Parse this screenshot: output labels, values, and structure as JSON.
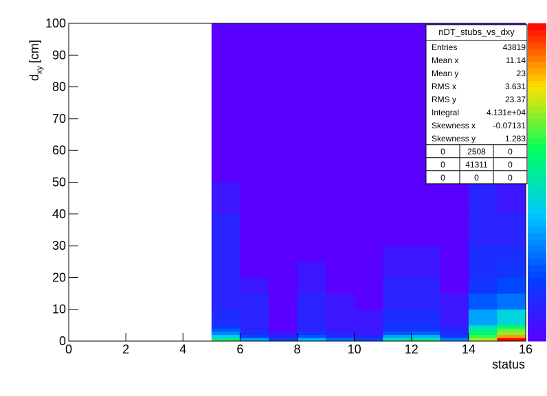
{
  "chart_data": {
    "type": "heatmap",
    "x_label": "status",
    "y_label": "d",
    "y_label_subscript": "xy",
    "y_label_unit": "[cm]",
    "xlim": [
      0,
      16
    ],
    "xticks": [
      0,
      2,
      4,
      6,
      8,
      10,
      12,
      14,
      16
    ],
    "ylim": [
      0,
      100
    ],
    "yticks": [
      0,
      10,
      20,
      30,
      40,
      50,
      60,
      70,
      80,
      90,
      100
    ],
    "x_bins": [
      5,
      6,
      7,
      8,
      9,
      10,
      11,
      12,
      13,
      14,
      15,
      16
    ],
    "y_bins": [
      0,
      1,
      2,
      3,
      4,
      5,
      10,
      15,
      20,
      25,
      30,
      40,
      50,
      60,
      70,
      80,
      90,
      100
    ],
    "zlim": [
      1,
      20000
    ],
    "z_log": true,
    "palette": [
      "#5a00ff",
      "#0040ff",
      "#00c8ff",
      "#00ff60",
      "#ffe000",
      "#ff0000"
    ],
    "values": [
      [
        300,
        60,
        20,
        10,
        6,
        4,
        3,
        3,
        3,
        3,
        3,
        2,
        1,
        1,
        1,
        1,
        1
      ],
      [
        30,
        8,
        4,
        3,
        3,
        3,
        3,
        2,
        1,
        1,
        1,
        1,
        1,
        1,
        1,
        1,
        1
      ],
      [
        8,
        3,
        2,
        1,
        1,
        1,
        1,
        1,
        1,
        1,
        1,
        1,
        1,
        1,
        1,
        1,
        1
      ],
      [
        40,
        10,
        5,
        3,
        3,
        3,
        3,
        2,
        2,
        1,
        1,
        1,
        1,
        1,
        1,
        1,
        1
      ],
      [
        15,
        4,
        3,
        2,
        2,
        2,
        2,
        1,
        1,
        1,
        1,
        1,
        1,
        1,
        1,
        1,
        1
      ],
      [
        8,
        3,
        2,
        2,
        2,
        2,
        1,
        1,
        1,
        1,
        1,
        1,
        1,
        1,
        1,
        1,
        1
      ],
      [
        150,
        30,
        10,
        5,
        5,
        4,
        3,
        3,
        2,
        2,
        1,
        1,
        1,
        1,
        1,
        1,
        1
      ],
      [
        200,
        40,
        12,
        6,
        5,
        4,
        3,
        3,
        2,
        2,
        1,
        1,
        1,
        1,
        1,
        1,
        1
      ],
      [
        20,
        6,
        4,
        3,
        3,
        2,
        2,
        1,
        1,
        1,
        1,
        1,
        1,
        1,
        1,
        1,
        1
      ],
      [
        1500,
        600,
        300,
        200,
        120,
        30,
        10,
        5,
        4,
        4,
        3,
        3,
        2,
        1,
        1,
        1,
        1
      ],
      [
        20000,
        5000,
        1200,
        800,
        400,
        80,
        15,
        8,
        5,
        4,
        3,
        2,
        1,
        1,
        1,
        1,
        1
      ]
    ],
    "stats": {
      "title": "nDT_stubs_vs_dxy",
      "rows": [
        [
          "Entries",
          "43819"
        ],
        [
          "Mean x",
          "11.14"
        ],
        [
          "Mean y",
          "23"
        ],
        [
          "RMS x",
          "3.631"
        ],
        [
          "RMS y",
          "23.37"
        ],
        [
          "Integral",
          "4.131e+04"
        ],
        [
          "Skewness x",
          "-0.07131"
        ],
        [
          "Skewness y",
          "1.283"
        ]
      ],
      "overflow": [
        [
          "0",
          "2508",
          "0"
        ],
        [
          "0",
          "41311",
          "0"
        ],
        [
          "0",
          "0",
          "0"
        ]
      ]
    }
  }
}
